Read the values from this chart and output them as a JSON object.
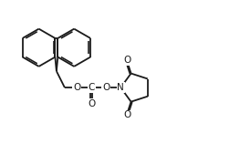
{
  "line_color": "#1a1a1a",
  "bg_color": "#ffffff",
  "line_width": 1.3,
  "font_size": 7.5,
  "xlim": [
    0,
    10
  ],
  "ylim": [
    0,
    6.5
  ]
}
